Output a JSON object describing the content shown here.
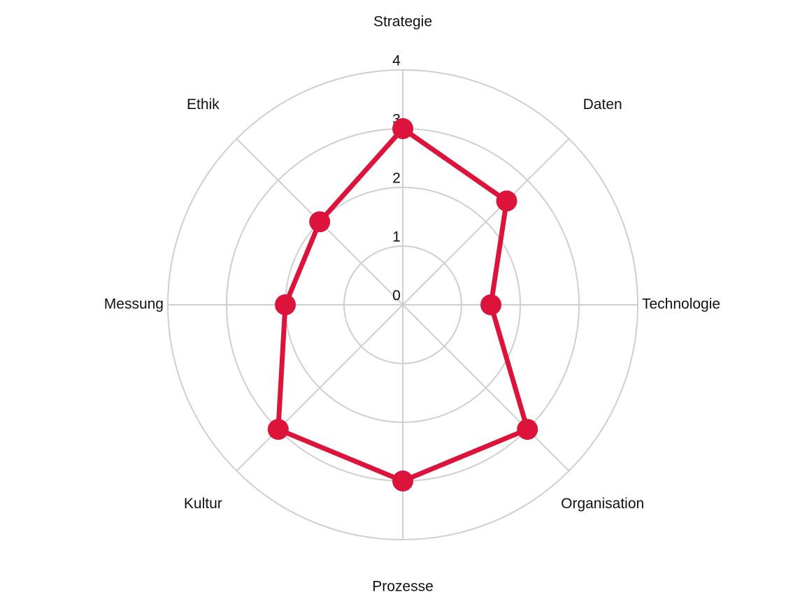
{
  "chart_data": {
    "type": "radar",
    "categories": [
      "Strategie",
      "Daten",
      "Technologie",
      "Organisation",
      "Prozesse",
      "Kultur",
      "Messung",
      "Ethik"
    ],
    "values": [
      3,
      2.5,
      1.5,
      3,
      3,
      3,
      2,
      2
    ],
    "color": "#dc143c",
    "rlim": [
      0,
      4
    ],
    "rticks": [
      0,
      1,
      2,
      3,
      4
    ],
    "grid": true
  }
}
